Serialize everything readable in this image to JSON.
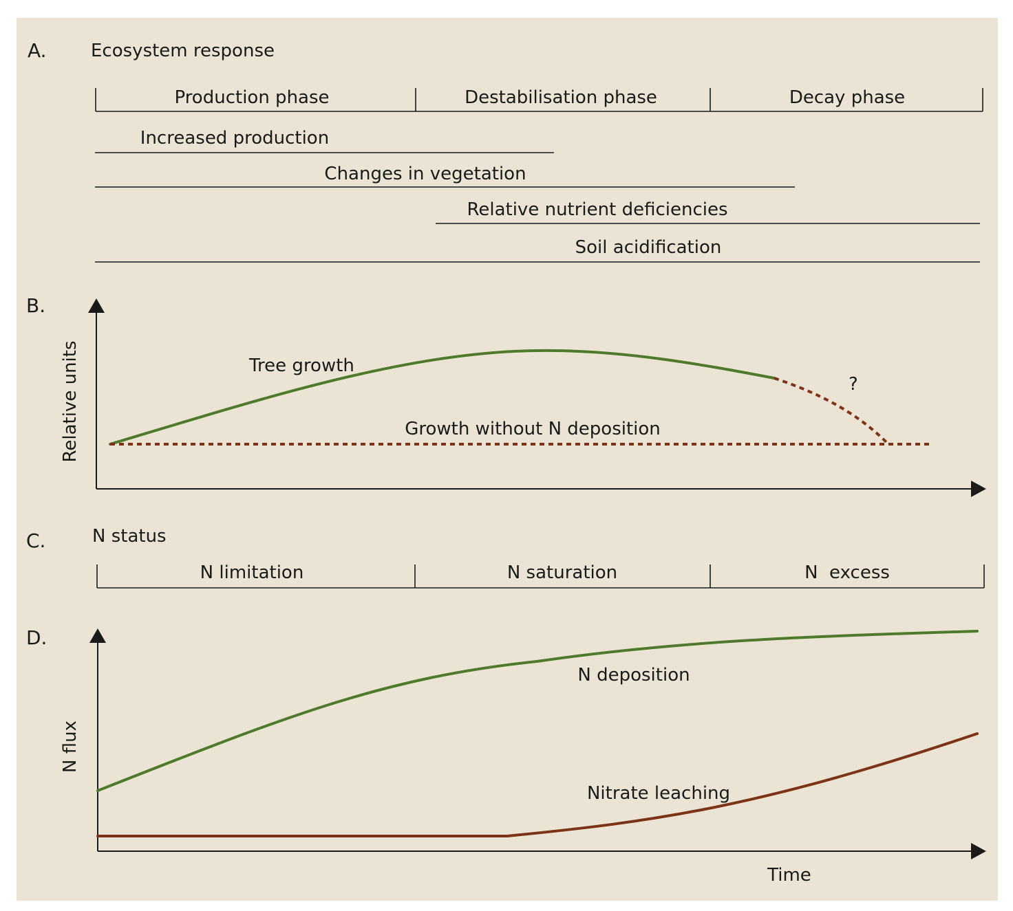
{
  "colors": {
    "background": "#ebe4d4",
    "green": "#4e7a2c",
    "brown": "#7d3316",
    "ink": "#1a1a1a"
  },
  "panel_a": {
    "letter": "A.",
    "title": "Ecosystem response",
    "phases": [
      "Production phase",
      "Destabilisation phase",
      "Decay phase"
    ],
    "responses": [
      {
        "label": "Increased production"
      },
      {
        "label": "Changes in vegetation"
      },
      {
        "label": "Relative nutrient deficiencies"
      },
      {
        "label": "Soil acidification"
      }
    ]
  },
  "panel_b": {
    "letter": "B.",
    "y_axis_label": "Relative units",
    "tree_growth_label": "Tree growth",
    "baseline_label": "Growth without N deposition",
    "uncertain_mark": "?"
  },
  "panel_c": {
    "letter": "C.",
    "title": "N status",
    "statuses": [
      "N limitation",
      "N saturation",
      "N  excess"
    ]
  },
  "panel_d": {
    "letter": "D.",
    "y_axis_label": "N flux",
    "x_axis_label": "Time",
    "deposition_label": "N deposition",
    "leaching_label": "Nitrate leaching"
  }
}
